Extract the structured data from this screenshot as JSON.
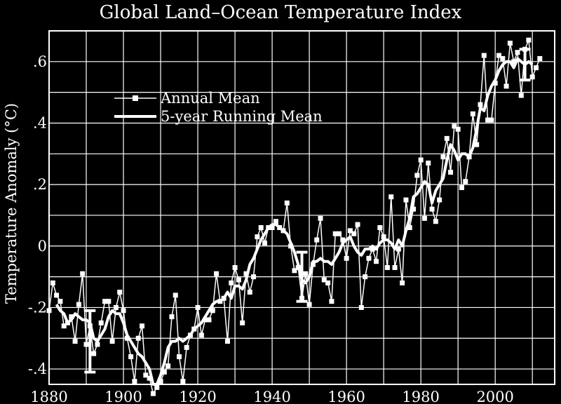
{
  "chart_data": {
    "type": "line",
    "title": "Global Land–Ocean Temperature Index",
    "xlabel": "",
    "ylabel": "Temperature Anomaly (°C)",
    "xlim": [
      1880,
      2016
    ],
    "ylim": [
      -0.45,
      0.7
    ],
    "x_ticks": [
      1880,
      1900,
      1920,
      1940,
      1960,
      1980,
      2000
    ],
    "x_tick_labels": [
      "1880",
      "1900",
      "1920",
      "1940",
      "1960",
      "1980",
      "2000"
    ],
    "y_ticks": [
      -0.4,
      -0.2,
      0,
      0.2,
      0.4,
      0.6
    ],
    "y_tick_labels": [
      "-.4",
      "-.2",
      "0",
      ".2",
      ".4",
      ".6"
    ],
    "grid": true,
    "legend_position": "upper-left",
    "colors": {
      "background": "#000000",
      "foreground": "#ffffff"
    },
    "series": [
      {
        "name": "Annual Mean",
        "marker": "square",
        "x": [
          1880,
          1881,
          1882,
          1883,
          1884,
          1885,
          1886,
          1887,
          1888,
          1889,
          1890,
          1891,
          1892,
          1893,
          1894,
          1895,
          1896,
          1897,
          1898,
          1899,
          1900,
          1901,
          1902,
          1903,
          1904,
          1905,
          1906,
          1907,
          1908,
          1909,
          1910,
          1911,
          1912,
          1913,
          1914,
          1915,
          1916,
          1917,
          1918,
          1919,
          1920,
          1921,
          1922,
          1923,
          1924,
          1925,
          1926,
          1927,
          1928,
          1929,
          1930,
          1931,
          1932,
          1933,
          1934,
          1935,
          1936,
          1937,
          1938,
          1939,
          1940,
          1941,
          1942,
          1943,
          1944,
          1945,
          1946,
          1947,
          1948,
          1949,
          1950,
          1951,
          1952,
          1953,
          1954,
          1955,
          1956,
          1957,
          1958,
          1959,
          1960,
          1961,
          1962,
          1963,
          1964,
          1965,
          1966,
          1967,
          1968,
          1969,
          1970,
          1971,
          1972,
          1973,
          1974,
          1975,
          1976,
          1977,
          1978,
          1979,
          1980,
          1981,
          1982,
          1983,
          1984,
          1985,
          1986,
          1987,
          1988,
          1989,
          1990,
          1991,
          1992,
          1993,
          1994,
          1995,
          1996,
          1997,
          1998,
          1999,
          2000,
          2001,
          2002,
          2003,
          2004,
          2005,
          2006,
          2007,
          2008,
          2009,
          2010,
          2011,
          2012
        ],
        "values": [
          -0.21,
          -0.12,
          -0.16,
          -0.18,
          -0.26,
          -0.25,
          -0.23,
          -0.31,
          -0.19,
          -0.09,
          -0.32,
          -0.26,
          -0.35,
          -0.32,
          -0.25,
          -0.18,
          -0.18,
          -0.31,
          -0.2,
          -0.15,
          -0.21,
          -0.3,
          -0.36,
          -0.44,
          -0.3,
          -0.26,
          -0.42,
          -0.43,
          -0.48,
          -0.46,
          -0.44,
          -0.41,
          -0.39,
          -0.23,
          -0.16,
          -0.36,
          -0.44,
          -0.33,
          -0.29,
          -0.27,
          -0.2,
          -0.29,
          -0.24,
          -0.24,
          -0.21,
          -0.09,
          -0.18,
          -0.17,
          -0.31,
          -0.12,
          -0.07,
          -0.11,
          -0.25,
          -0.09,
          -0.15,
          -0.1,
          0.03,
          0.06,
          0.01,
          0.06,
          0.06,
          0.08,
          0.06,
          0.05,
          0.14,
          0.0,
          -0.08,
          -0.07,
          -0.17,
          -0.09,
          -0.19,
          -0.06,
          0.02,
          0.09,
          -0.11,
          -0.12,
          -0.18,
          0.04,
          0.04,
          0.02,
          -0.04,
          0.05,
          0.04,
          0.07,
          -0.2,
          -0.1,
          -0.04,
          -0.01,
          -0.05,
          0.06,
          0.03,
          -0.07,
          0.16,
          -0.07,
          -0.01,
          -0.12,
          0.15,
          0.06,
          0.12,
          0.23,
          0.28,
          0.09,
          0.27,
          0.12,
          0.08,
          0.15,
          0.29,
          0.35,
          0.24,
          0.39,
          0.38,
          0.19,
          0.21,
          0.29,
          0.43,
          0.33,
          0.46,
          0.62,
          0.41,
          0.41,
          0.53,
          0.62,
          0.61,
          0.52,
          0.66,
          0.6,
          0.63,
          0.49,
          0.64,
          0.67,
          0.55,
          0.58,
          0.61
        ]
      },
      {
        "name": "5-year Running Mean",
        "x": [
          1882,
          1883,
          1884,
          1885,
          1886,
          1887,
          1888,
          1889,
          1890,
          1891,
          1892,
          1893,
          1894,
          1895,
          1896,
          1897,
          1898,
          1899,
          1900,
          1901,
          1902,
          1903,
          1904,
          1905,
          1906,
          1907,
          1908,
          1909,
          1910,
          1911,
          1912,
          1913,
          1914,
          1915,
          1916,
          1917,
          1918,
          1919,
          1920,
          1921,
          1922,
          1923,
          1924,
          1925,
          1926,
          1927,
          1928,
          1929,
          1930,
          1931,
          1932,
          1933,
          1934,
          1935,
          1936,
          1937,
          1938,
          1939,
          1940,
          1941,
          1942,
          1943,
          1944,
          1945,
          1946,
          1947,
          1948,
          1949,
          1950,
          1951,
          1952,
          1953,
          1954,
          1955,
          1956,
          1957,
          1958,
          1959,
          1960,
          1961,
          1962,
          1963,
          1964,
          1965,
          1966,
          1967,
          1968,
          1969,
          1970,
          1971,
          1972,
          1973,
          1974,
          1975,
          1976,
          1977,
          1978,
          1979,
          1980,
          1981,
          1982,
          1983,
          1984,
          1985,
          1986,
          1987,
          1988,
          1989,
          1990,
          1991,
          1992,
          1993,
          1994,
          1995,
          1996,
          1997,
          1998,
          1999,
          2000,
          2001,
          2002,
          2003,
          2004,
          2005,
          2006,
          2007,
          2008,
          2009,
          2010
        ],
        "values": [
          -0.19,
          -0.21,
          -0.22,
          -0.25,
          -0.24,
          -0.22,
          -0.23,
          -0.24,
          -0.24,
          -0.25,
          -0.3,
          -0.31,
          -0.29,
          -0.27,
          -0.23,
          -0.21,
          -0.22,
          -0.22,
          -0.25,
          -0.29,
          -0.31,
          -0.33,
          -0.35,
          -0.36,
          -0.38,
          -0.4,
          -0.45,
          -0.45,
          -0.42,
          -0.38,
          -0.33,
          -0.31,
          -0.31,
          -0.3,
          -0.31,
          -0.3,
          -0.29,
          -0.27,
          -0.26,
          -0.25,
          -0.23,
          -0.21,
          -0.19,
          -0.18,
          -0.18,
          -0.17,
          -0.15,
          -0.17,
          -0.13,
          -0.13,
          -0.14,
          -0.11,
          -0.06,
          -0.04,
          -0.01,
          0.02,
          0.04,
          0.06,
          0.07,
          0.07,
          0.06,
          0.05,
          0.04,
          0.01,
          -0.02,
          -0.06,
          -0.11,
          -0.12,
          -0.1,
          -0.05,
          -0.05,
          -0.04,
          -0.05,
          -0.05,
          -0.06,
          -0.04,
          -0.02,
          0.01,
          0.02,
          0.03,
          0.0,
          -0.02,
          -0.03,
          -0.01,
          -0.01,
          0.0,
          -0.01,
          0.01,
          0.02,
          0.02,
          0.01,
          -0.01,
          0.02,
          0.0,
          0.05,
          0.09,
          0.16,
          0.17,
          0.19,
          0.21,
          0.2,
          0.14,
          0.18,
          0.2,
          0.22,
          0.28,
          0.33,
          0.31,
          0.28,
          0.3,
          0.3,
          0.29,
          0.32,
          0.38,
          0.45,
          0.44,
          0.49,
          0.52,
          0.54,
          0.57,
          0.59,
          0.6,
          0.6,
          0.58,
          0.61,
          0.6,
          0.59,
          0.6,
          0.59
        ]
      }
    ],
    "error_bars": [
      {
        "x": 1891,
        "low": -0.41,
        "high": -0.21
      },
      {
        "x": 1948,
        "low": -0.18,
        "high": -0.02
      },
      {
        "x": 2008,
        "low": 0.54,
        "high": 0.64
      }
    ]
  }
}
